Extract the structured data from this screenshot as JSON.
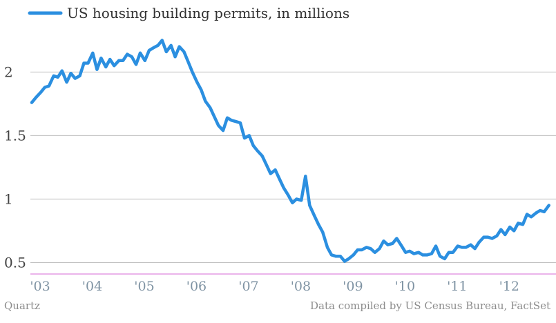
{
  "chart_data": {
    "type": "line",
    "title": "US housing building permits, in millions",
    "series": [
      {
        "name": "US housing building permits, in millions",
        "color": "#2b8fe0",
        "points": [
          [
            2003.0,
            1.76
          ],
          [
            2003.08,
            1.8
          ],
          [
            2003.17,
            1.84
          ],
          [
            2003.25,
            1.88
          ],
          [
            2003.33,
            1.89
          ],
          [
            2003.42,
            1.97
          ],
          [
            2003.5,
            1.96
          ],
          [
            2003.58,
            2.01
          ],
          [
            2003.67,
            1.92
          ],
          [
            2003.75,
            1.99
          ],
          [
            2003.83,
            1.95
          ],
          [
            2003.92,
            1.97
          ],
          [
            2004.0,
            2.07
          ],
          [
            2004.08,
            2.07
          ],
          [
            2004.17,
            2.15
          ],
          [
            2004.25,
            2.02
          ],
          [
            2004.33,
            2.11
          ],
          [
            2004.42,
            2.04
          ],
          [
            2004.5,
            2.1
          ],
          [
            2004.58,
            2.05
          ],
          [
            2004.67,
            2.09
          ],
          [
            2004.75,
            2.09
          ],
          [
            2004.83,
            2.14
          ],
          [
            2004.92,
            2.12
          ],
          [
            2005.0,
            2.06
          ],
          [
            2005.08,
            2.15
          ],
          [
            2005.17,
            2.09
          ],
          [
            2005.25,
            2.17
          ],
          [
            2005.33,
            2.19
          ],
          [
            2005.42,
            2.21
          ],
          [
            2005.5,
            2.25
          ],
          [
            2005.58,
            2.16
          ],
          [
            2005.67,
            2.21
          ],
          [
            2005.75,
            2.12
          ],
          [
            2005.83,
            2.2
          ],
          [
            2005.92,
            2.16
          ],
          [
            2006.0,
            2.08
          ],
          [
            2006.08,
            2.0
          ],
          [
            2006.17,
            1.92
          ],
          [
            2006.25,
            1.86
          ],
          [
            2006.33,
            1.77
          ],
          [
            2006.42,
            1.72
          ],
          [
            2006.5,
            1.65
          ],
          [
            2006.58,
            1.58
          ],
          [
            2006.67,
            1.54
          ],
          [
            2006.75,
            1.64
          ],
          [
            2006.83,
            1.62
          ],
          [
            2006.92,
            1.61
          ],
          [
            2007.0,
            1.6
          ],
          [
            2007.08,
            1.48
          ],
          [
            2007.17,
            1.5
          ],
          [
            2007.25,
            1.42
          ],
          [
            2007.33,
            1.38
          ],
          [
            2007.42,
            1.34
          ],
          [
            2007.5,
            1.27
          ],
          [
            2007.58,
            1.2
          ],
          [
            2007.67,
            1.23
          ],
          [
            2007.75,
            1.16
          ],
          [
            2007.83,
            1.09
          ],
          [
            2007.92,
            1.03
          ],
          [
            2008.0,
            0.97
          ],
          [
            2008.08,
            1.0
          ],
          [
            2008.17,
            0.99
          ],
          [
            2008.25,
            1.18
          ],
          [
            2008.33,
            0.95
          ],
          [
            2008.42,
            0.87
          ],
          [
            2008.5,
            0.8
          ],
          [
            2008.58,
            0.74
          ],
          [
            2008.67,
            0.62
          ],
          [
            2008.75,
            0.56
          ],
          [
            2008.83,
            0.55
          ],
          [
            2008.92,
            0.55
          ],
          [
            2009.0,
            0.51
          ],
          [
            2009.08,
            0.53
          ],
          [
            2009.17,
            0.56
          ],
          [
            2009.25,
            0.6
          ],
          [
            2009.33,
            0.6
          ],
          [
            2009.42,
            0.62
          ],
          [
            2009.5,
            0.61
          ],
          [
            2009.58,
            0.58
          ],
          [
            2009.67,
            0.61
          ],
          [
            2009.75,
            0.67
          ],
          [
            2009.83,
            0.64
          ],
          [
            2009.92,
            0.65
          ],
          [
            2010.0,
            0.69
          ],
          [
            2010.08,
            0.64
          ],
          [
            2010.17,
            0.58
          ],
          [
            2010.25,
            0.59
          ],
          [
            2010.33,
            0.57
          ],
          [
            2010.42,
            0.58
          ],
          [
            2010.5,
            0.56
          ],
          [
            2010.58,
            0.56
          ],
          [
            2010.67,
            0.57
          ],
          [
            2010.75,
            0.63
          ],
          [
            2010.83,
            0.55
          ],
          [
            2010.92,
            0.53
          ],
          [
            2011.0,
            0.58
          ],
          [
            2011.08,
            0.58
          ],
          [
            2011.17,
            0.63
          ],
          [
            2011.25,
            0.62
          ],
          [
            2011.33,
            0.62
          ],
          [
            2011.42,
            0.64
          ],
          [
            2011.5,
            0.61
          ],
          [
            2011.58,
            0.66
          ],
          [
            2011.67,
            0.7
          ],
          [
            2011.75,
            0.7
          ],
          [
            2011.83,
            0.69
          ],
          [
            2011.92,
            0.71
          ],
          [
            2012.0,
            0.76
          ],
          [
            2012.08,
            0.72
          ],
          [
            2012.17,
            0.78
          ],
          [
            2012.25,
            0.75
          ],
          [
            2012.33,
            0.81
          ],
          [
            2012.42,
            0.8
          ],
          [
            2012.5,
            0.88
          ],
          [
            2012.58,
            0.86
          ],
          [
            2012.67,
            0.89
          ],
          [
            2012.75,
            0.91
          ],
          [
            2012.83,
            0.9
          ],
          [
            2012.92,
            0.95
          ]
        ]
      }
    ],
    "x_ticks": [
      {
        "value": 2003,
        "label": "'03"
      },
      {
        "value": 2004,
        "label": "'04"
      },
      {
        "value": 2005,
        "label": "'05"
      },
      {
        "value": 2006,
        "label": "'06"
      },
      {
        "value": 2007,
        "label": "'07"
      },
      {
        "value": 2008,
        "label": "'08"
      },
      {
        "value": 2009,
        "label": "'09"
      },
      {
        "value": 2010,
        "label": "'10"
      },
      {
        "value": 2011,
        "label": "'11"
      },
      {
        "value": 2012,
        "label": "'12"
      }
    ],
    "y_ticks": [
      {
        "value": 0.5,
        "label": "0.5"
      },
      {
        "value": 1,
        "label": "1"
      },
      {
        "value": 1.5,
        "label": "1.5"
      },
      {
        "value": 2,
        "label": "2"
      }
    ],
    "xlim": [
      2002.92,
      2012.95
    ],
    "ylim": [
      0.41,
      2.35
    ],
    "grid": true,
    "legend_position": "top-left",
    "baseline_color": "#dd88dd",
    "grid_color": "#bfbfbf"
  },
  "footer": {
    "source_left": "Quartz",
    "source_right": "Data compiled by US Census Bureau, FactSet"
  }
}
